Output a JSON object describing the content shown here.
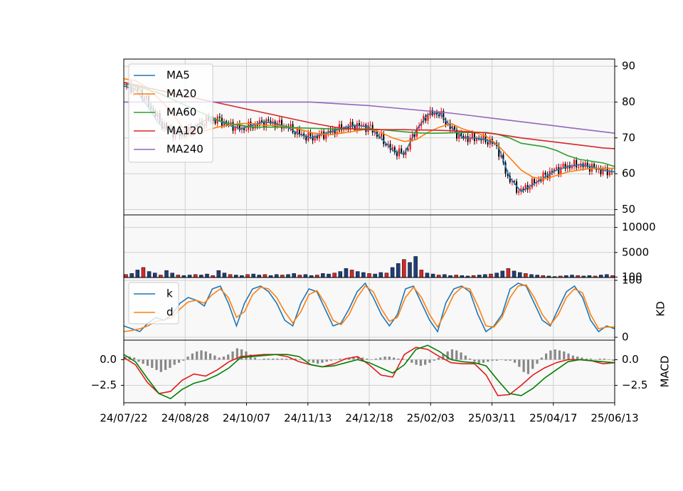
{
  "chart_data": {
    "type": "line",
    "x_ticks": [
      "24/07/22",
      "24/08/28",
      "24/10/07",
      "24/11/13",
      "24/12/18",
      "25/02/03",
      "25/03/11",
      "25/04/17",
      "25/06/13"
    ],
    "panels": {
      "price": {
        "type": "candlestick",
        "yticks": [
          50,
          60,
          70,
          80,
          90
        ],
        "ylim": [
          48.5,
          92
        ],
        "series": [
          {
            "name": "MA5",
            "color": "#1f77b4",
            "y": [
              84.5,
              83.5,
              79,
              74,
              71.5,
              71,
              73,
              75,
              75,
              73.5,
              72.5,
              73.5,
              74.5,
              74,
              73,
              71,
              70,
              71,
              72,
              73,
              73.5,
              73,
              70,
              66.5,
              65.5,
              72,
              76.5,
              77,
              73,
              70,
              70,
              69.5,
              68,
              59,
              55,
              57,
              59,
              61,
              62,
              62.5,
              62,
              61,
              60.5
            ]
          },
          {
            "name": "MA20",
            "color": "#ff7f0e",
            "y": [
              86.5,
              86,
              84,
              81,
              77.5,
              73,
              71.5,
              72,
              73,
              73.5,
              74,
              74,
              73.5,
              73.5,
              73,
              72.5,
              71.5,
              71,
              71,
              71.5,
              72,
              72.5,
              71.5,
              70,
              69,
              69.5,
              71.5,
              73,
              74,
              72.5,
              71.5,
              70.5,
              68,
              64.5,
              61,
              59,
              58.5,
              59.5,
              60.5,
              61,
              61.5,
              61.5,
              61.5
            ]
          },
          {
            "name": "MA60",
            "color": "#2ca02c",
            "y": [
              85,
              84.5,
              83.5,
              82.5,
              81,
              79.5,
              78,
              76.5,
              75,
              74,
              73.5,
              73,
              73,
              73,
              73,
              72.8,
              72.7,
              72.6,
              72.5,
              72.5,
              72.5,
              72.5,
              72.3,
              72,
              71.7,
              71.4,
              71.3,
              71.3,
              71.4,
              71.5,
              71.5,
              71.5,
              71,
              70,
              68.5,
              68,
              67.5,
              66.5,
              65,
              64,
              63.5,
              63,
              62
            ]
          },
          {
            "name": "MA120",
            "color": "#d62728",
            "y": [
              85.5,
              84.8,
              84,
              83.3,
              82.6,
              81.9,
              81.2,
              80.5,
              79.8,
              79.1,
              78.4,
              77.7,
              77,
              76.3,
              75.6,
              74.9,
              74.2,
              73.6,
              73,
              72.6,
              72.4,
              72.3,
              72.3,
              72.3,
              72.3,
              72.2,
              72.2,
              72.1,
              72,
              71.8,
              71.6,
              71.4,
              71,
              70.5,
              70,
              69.6,
              69.2,
              68.8,
              68.4,
              68,
              67.6,
              67.2,
              67
            ]
          },
          {
            "name": "MA240",
            "color": "#9467bd",
            "y": [
              80,
              80,
              80,
              80,
              80,
              80,
              80,
              80,
              80,
              80,
              80,
              80,
              80,
              80,
              80,
              80,
              80,
              79.8,
              79.6,
              79.4,
              79.2,
              79,
              78.7,
              78.4,
              78.1,
              77.8,
              77.5,
              77.2,
              76.9,
              76.5,
              76.1,
              75.7,
              75.3,
              74.9,
              74.5,
              74.1,
              73.7,
              73.3,
              72.9,
              72.5,
              72.1,
              71.7,
              71.3
            ]
          }
        ]
      },
      "volume": {
        "type": "bar",
        "yticks": [
          100,
          5000,
          10000
        ],
        "ylim": [
          0,
          12500
        ],
        "values": [
          600,
          800,
          1500,
          2000,
          1200,
          900,
          500,
          1400,
          900,
          500,
          400,
          500,
          600,
          500,
          700,
          400,
          1400,
          900,
          600,
          500,
          400,
          600,
          700,
          500,
          600,
          400,
          600,
          500,
          600,
          800,
          500,
          600,
          400,
          500,
          800,
          700,
          900,
          1200,
          1800,
          1500,
          1200,
          1000,
          800,
          700,
          1000,
          900,
          2000,
          2800,
          3600,
          3000,
          4200,
          1500,
          900,
          700,
          500,
          600,
          400,
          500,
          400,
          300,
          400,
          500,
          600,
          700,
          900,
          1300,
          1800,
          1300,
          1000,
          800,
          600,
          500,
          400,
          300,
          200,
          300,
          400,
          500,
          400,
          300,
          400,
          300,
          500,
          600,
          400
        ]
      },
      "kd": {
        "yticks": [
          0,
          100
        ],
        "ylabel": "KD",
        "ylim": [
          -5,
          105
        ],
        "series": [
          {
            "name": "k",
            "color": "#1f77b4",
            "y": [
              20,
              15,
              10,
              25,
              35,
              30,
              40,
              60,
              70,
              65,
              55,
              85,
              90,
              60,
              20,
              60,
              85,
              90,
              80,
              60,
              30,
              20,
              60,
              85,
              80,
              50,
              20,
              25,
              50,
              80,
              95,
              70,
              40,
              20,
              40,
              85,
              90,
              60,
              30,
              10,
              60,
              85,
              90,
              80,
              40,
              10,
              20,
              40,
              85,
              95,
              90,
              60,
              30,
              20,
              50,
              80,
              90,
              70,
              30,
              10,
              20,
              15
            ]
          },
          {
            "name": "d",
            "color": "#ff7f0e",
            "y": [
              10,
              12,
              15,
              20,
              28,
              30,
              35,
              50,
              62,
              65,
              60,
              75,
              85,
              70,
              35,
              45,
              75,
              88,
              85,
              70,
              45,
              25,
              45,
              75,
              82,
              60,
              30,
              22,
              40,
              70,
              90,
              80,
              50,
              28,
              35,
              70,
              88,
              70,
              40,
              18,
              45,
              75,
              88,
              85,
              55,
              20,
              18,
              35,
              70,
              90,
              92,
              70,
              40,
              22,
              40,
              70,
              85,
              78,
              40,
              15,
              18,
              18
            ]
          }
        ]
      },
      "macd": {
        "yticks": [
          0.0,
          -2.5
        ],
        "ylabel": "MACD",
        "ylim": [
          -4.2,
          1.9
        ],
        "red": [
          0.2,
          -0.5,
          -2.2,
          -3.3,
          -3.1,
          -2.0,
          -1.4,
          -1.6,
          -1.0,
          -0.2,
          0.3,
          0.4,
          0.5,
          0.5,
          0.3,
          -0.2,
          -0.5,
          -0.7,
          -0.4,
          0.1,
          0.3,
          -0.5,
          -1.5,
          -1.7,
          0.5,
          1.2,
          1.0,
          0.3,
          -0.3,
          -0.4,
          -0.4,
          -1.5,
          -3.5,
          -3.4,
          -2.5,
          -1.5,
          -0.8,
          -0.3,
          0.0,
          0.0,
          -0.1,
          -0.4,
          -0.3
        ],
        "green": [
          0.5,
          -0.2,
          -1.8,
          -3.3,
          -3.8,
          -2.9,
          -2.3,
          -2.0,
          -1.5,
          -0.8,
          0.2,
          0.3,
          0.4,
          0.5,
          0.5,
          0.3,
          -0.5,
          -0.7,
          -0.6,
          -0.3,
          0.0,
          -0.3,
          -0.8,
          -1.3,
          -0.5,
          1.0,
          1.4,
          0.8,
          0.0,
          -0.2,
          -0.3,
          -0.6,
          -2.0,
          -3.3,
          -3.5,
          -2.8,
          -1.8,
          -1.0,
          -0.2,
          0.0,
          -0.1,
          -0.2,
          -0.3
        ],
        "hist": [
          0.3,
          0.3,
          0.2,
          -0.2,
          -0.4,
          -0.6,
          -0.8,
          -1.0,
          -1.2,
          -1.0,
          -0.8,
          -0.5,
          -0.3,
          -0.1,
          0.3,
          0.6,
          0.8,
          0.9,
          0.8,
          0.6,
          0.4,
          0.2,
          0.3,
          0.5,
          0.8,
          1.1,
          1.0,
          0.8,
          0.5,
          0.2,
          0.0,
          0.1,
          0.1,
          0.1,
          0.1,
          0.1,
          0.1,
          0.1,
          0.1,
          0.0,
          -0.1,
          -0.2,
          -0.3,
          -0.4,
          -0.3,
          -0.2,
          -0.1,
          0.0,
          0.1,
          0.1,
          0.2,
          0.3,
          0.3,
          0.2,
          0.1,
          0.0,
          0.1,
          0.2,
          0.3,
          0.3,
          0.2,
          0.1,
          0.1,
          -0.1,
          -0.3,
          -0.5,
          -0.6,
          -0.5,
          -0.3,
          -0.1,
          0.2,
          0.5,
          0.8,
          1.0,
          0.9,
          0.7,
          0.4,
          0.1,
          -0.2,
          -0.4,
          -0.3,
          -0.2,
          -0.1,
          -0.1,
          0.0,
          -0.1,
          -0.1,
          -0.3,
          -0.7,
          -1.2,
          -1.4,
          -0.9,
          -0.4,
          0.2,
          0.6,
          0.9,
          1.0,
          0.9,
          0.8,
          0.6,
          0.4,
          0.3,
          0.2,
          0.1,
          0.1,
          0.0,
          0.1,
          0.1,
          0.0,
          -0.1
        ]
      }
    }
  }
}
